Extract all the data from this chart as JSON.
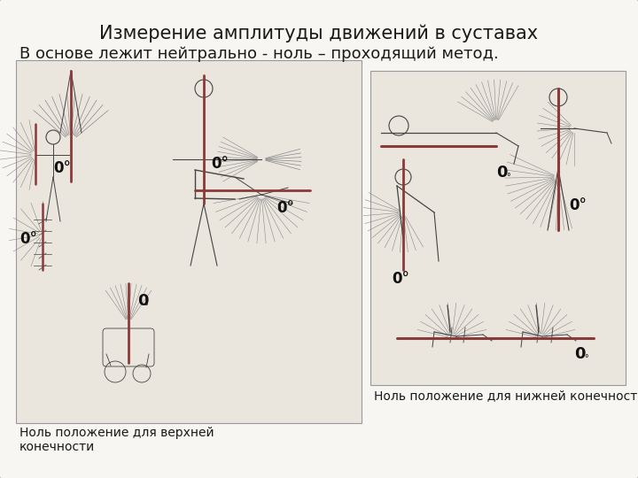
{
  "title": "Измерение амплитуды движений в суставах",
  "subtitle": "В основе лежит нейтрально - ноль – проходящий метод.",
  "bg_color": "#f0ede8",
  "panel_bg": "#e8e4dc",
  "border_color": "#999999",
  "left_caption": "Ноль положение для верхней\nконечности",
  "right_caption": "Ноль положение для нижней конечности",
  "title_fontsize": 15,
  "subtitle_fontsize": 13,
  "caption_fontsize": 10,
  "red_color": "#8B3A3A",
  "line_color": "#444444",
  "label_color": "#111111"
}
